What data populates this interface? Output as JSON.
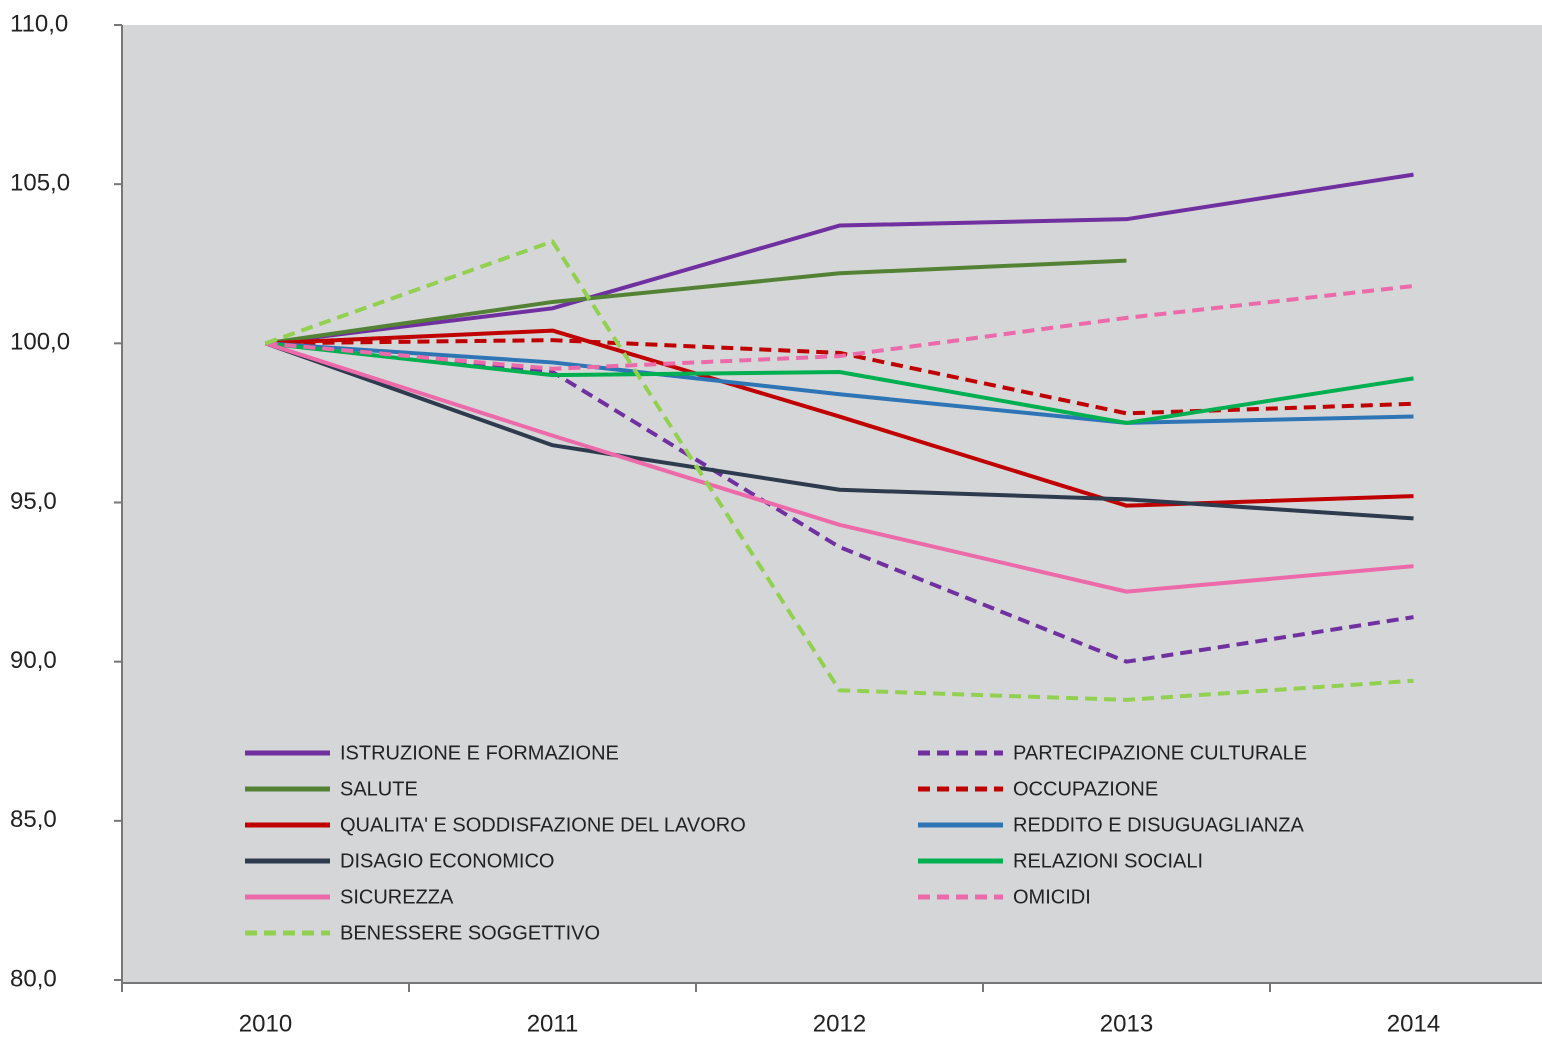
{
  "chart_data": {
    "type": "line",
    "categories": [
      "2010",
      "2011",
      "2012",
      "2013",
      "2014"
    ],
    "ylim": [
      80,
      110
    ],
    "yticks": [
      {
        "value": 80,
        "label": "80,0"
      },
      {
        "value": 85,
        "label": "85,0"
      },
      {
        "value": 90,
        "label": "90,0"
      },
      {
        "value": 95,
        "label": "95,0"
      },
      {
        "value": 100,
        "label": "100,0"
      },
      {
        "value": 105,
        "label": "105,0"
      },
      {
        "value": 110,
        "label": "110,0"
      }
    ],
    "grid": false,
    "legend": "bottom-left",
    "series": [
      {
        "name": "ISTRUZIONE E FORMAZIONE",
        "color": "#7030a0",
        "dashed": false,
        "values": [
          100,
          101.1,
          103.7,
          103.9,
          105.3
        ]
      },
      {
        "name": "PARTECIPAZIONE CULTURALE",
        "color": "#7030a0",
        "dashed": true,
        "values": [
          100,
          99.1,
          93.6,
          90.0,
          91.4
        ]
      },
      {
        "name": "SALUTE",
        "color": "#548235",
        "dashed": false,
        "values": [
          100,
          101.3,
          102.2,
          102.6,
          null
        ]
      },
      {
        "name": "OCCUPAZIONE",
        "color": "#c00000",
        "dashed": true,
        "values": [
          100,
          100.1,
          99.7,
          97.8,
          98.1
        ]
      },
      {
        "name": "QUALITA' E SODDISFAZIONE DEL LAVORO",
        "color": "#c00000",
        "dashed": false,
        "values": [
          100,
          100.4,
          97.7,
          94.9,
          95.2
        ]
      },
      {
        "name": "REDDITO E DISUGUAGLIANZA",
        "color": "#2e75b6",
        "dashed": false,
        "values": [
          100,
          99.4,
          98.4,
          97.5,
          97.7
        ]
      },
      {
        "name": "DISAGIO ECONOMICO",
        "color": "#2e3b4e",
        "dashed": false,
        "values": [
          100,
          96.8,
          95.4,
          95.1,
          94.5
        ]
      },
      {
        "name": "RELAZIONI SOCIALI",
        "color": "#00b050",
        "dashed": false,
        "values": [
          100,
          99.0,
          99.1,
          97.5,
          98.9
        ]
      },
      {
        "name": "SICUREZZA",
        "color": "#ec6aaa",
        "dashed": false,
        "values": [
          100,
          97.1,
          94.3,
          92.2,
          93.0
        ]
      },
      {
        "name": "OMICIDI",
        "color": "#ec6aaa",
        "dashed": true,
        "values": [
          100,
          99.2,
          99.6,
          100.8,
          101.8
        ]
      },
      {
        "name": "BENESSERE SOGGETTIVO",
        "color": "#92d050",
        "dashed": true,
        "values": [
          100,
          103.2,
          89.1,
          88.8,
          89.4
        ]
      }
    ]
  }
}
